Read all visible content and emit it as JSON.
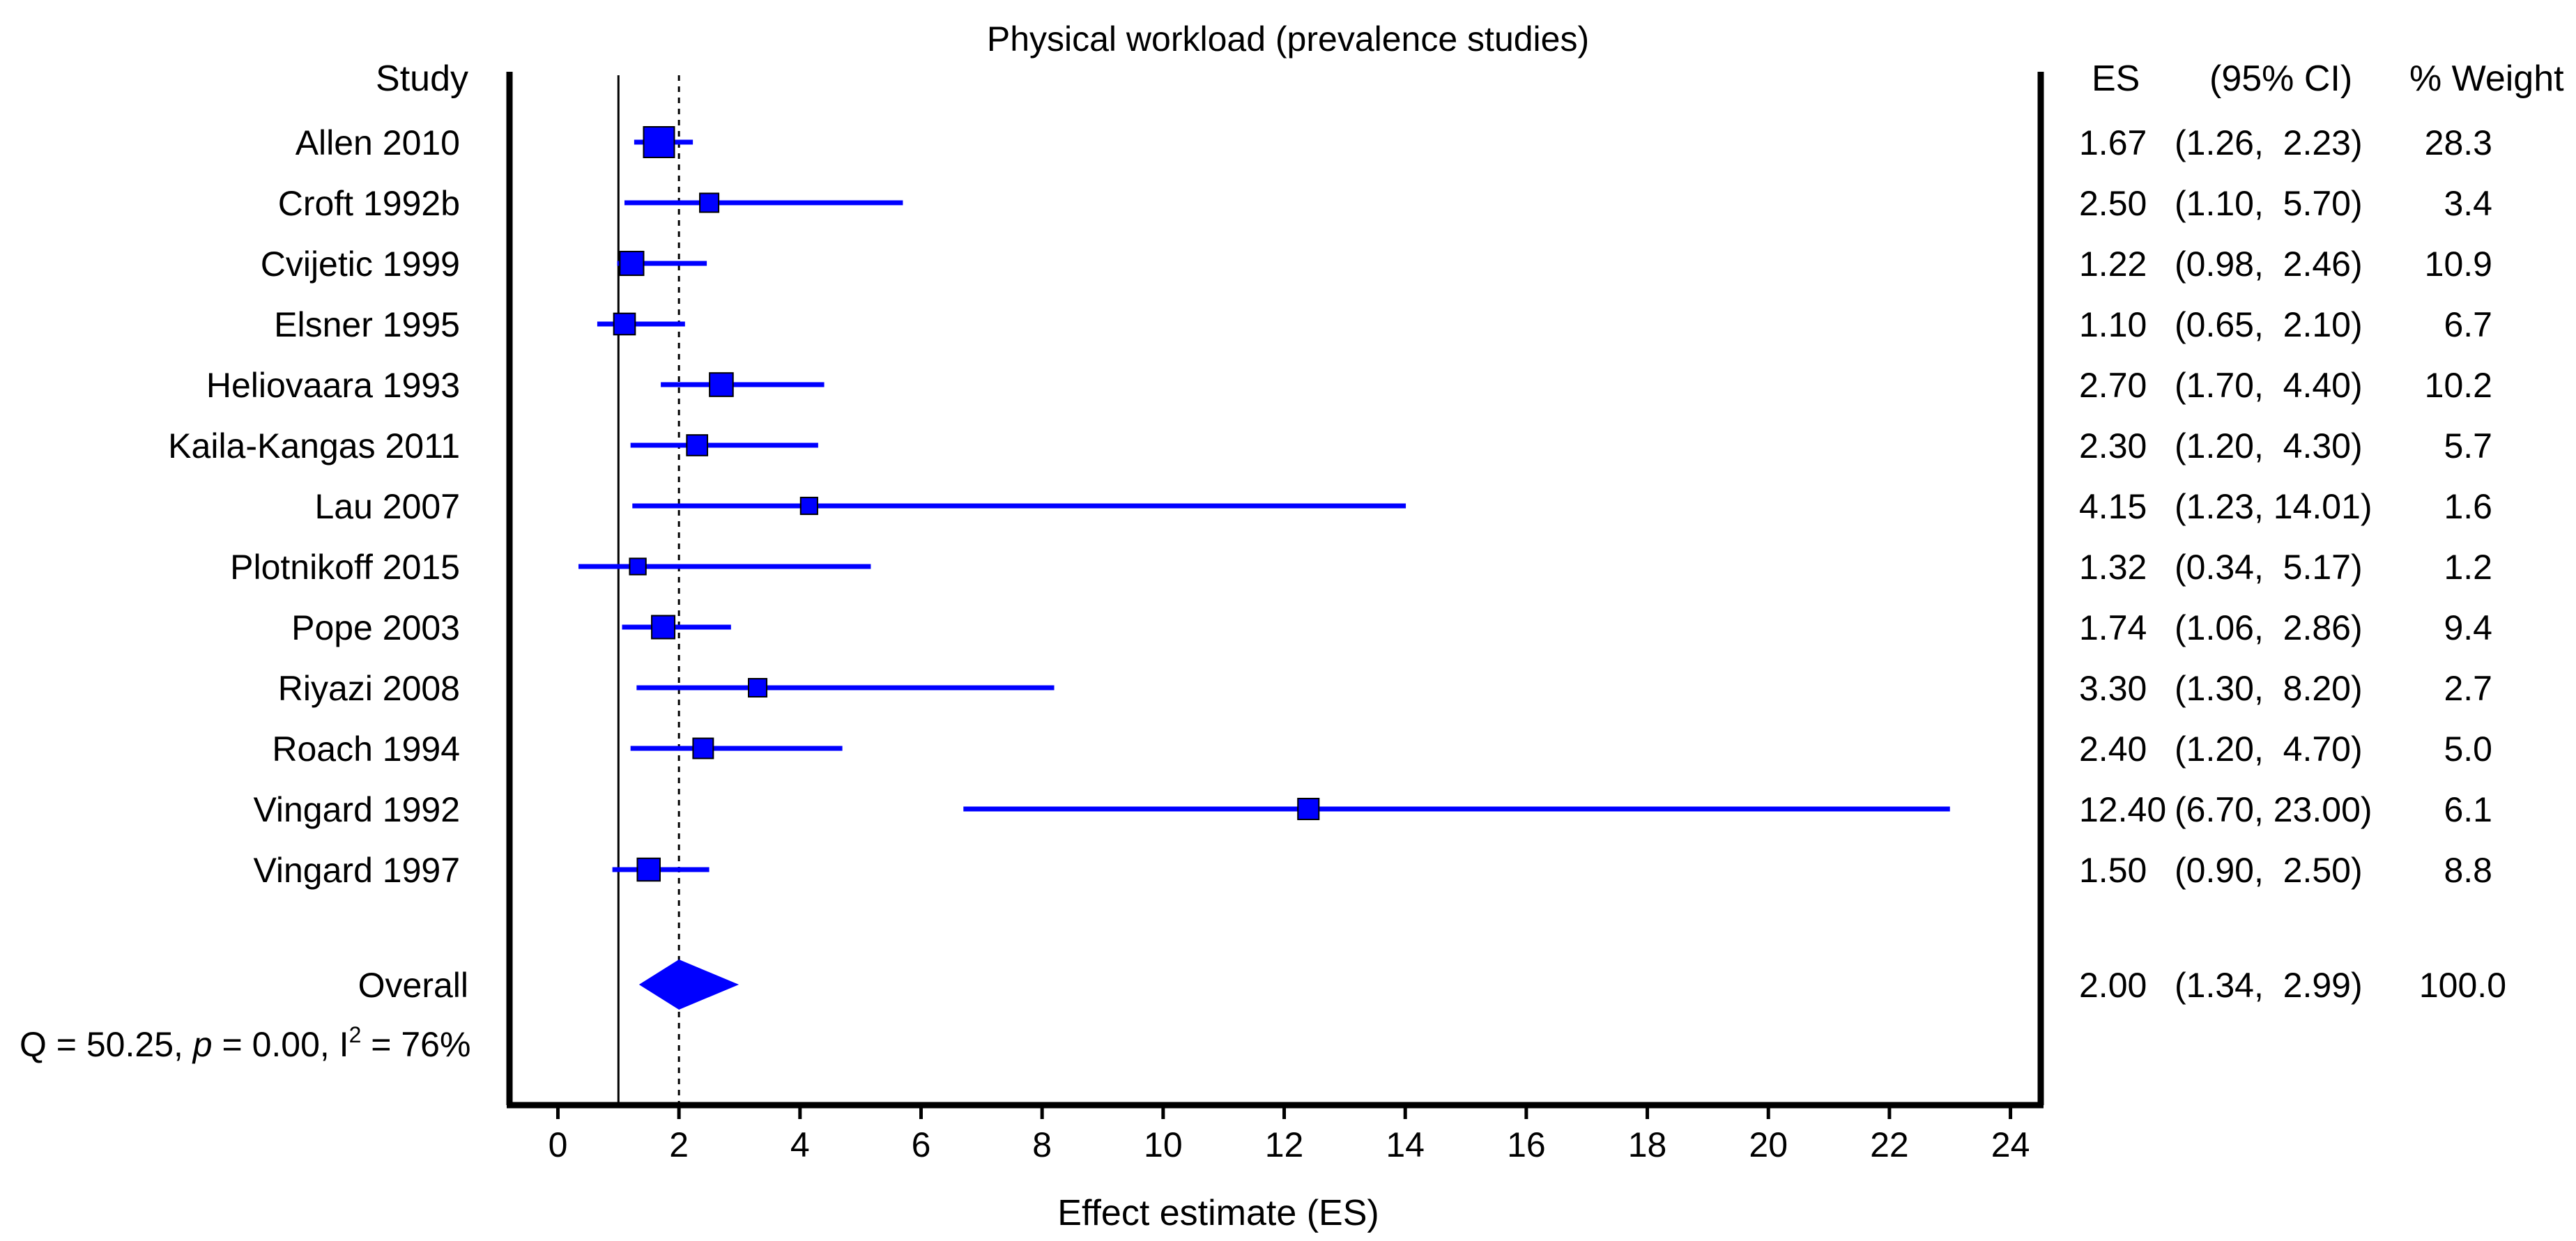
{
  "chart_data": {
    "type": "forest",
    "title": "Physical workload (prevalence studies)",
    "xlabel": "Effect estimate (ES)",
    "xlim": [
      -0.8,
      24.5
    ],
    "xticks": [
      0,
      2,
      4,
      6,
      8,
      10,
      12,
      14,
      16,
      18,
      20,
      22,
      24
    ],
    "null_line": 1,
    "pooled_line": 2.0,
    "headers": {
      "study": "Study",
      "es": "ES",
      "ci": "(95% CI)",
      "weight": "% Weight"
    },
    "studies": [
      {
        "name": "Allen 2010",
        "es": 1.67,
        "lo": 1.26,
        "hi": 2.23,
        "es_text": "1.67",
        "ci_text": "(1.26,  2.23)",
        "weight": 28.3,
        "weight_text": "28.3"
      },
      {
        "name": "Croft 1992b",
        "es": 2.5,
        "lo": 1.1,
        "hi": 5.7,
        "es_text": "2.50",
        "ci_text": "(1.10,  5.70)",
        "weight": 3.4,
        "weight_text": "3.4"
      },
      {
        "name": "Cvijetic 1999",
        "es": 1.22,
        "lo": 0.98,
        "hi": 2.46,
        "es_text": "1.22",
        "ci_text": "(0.98,  2.46)",
        "weight": 10.9,
        "weight_text": "10.9"
      },
      {
        "name": "Elsner 1995",
        "es": 1.1,
        "lo": 0.65,
        "hi": 2.1,
        "es_text": "1.10",
        "ci_text": "(0.65,  2.10)",
        "weight": 6.7,
        "weight_text": "6.7"
      },
      {
        "name": "Heliovaara 1993",
        "es": 2.7,
        "lo": 1.7,
        "hi": 4.4,
        "es_text": "2.70",
        "ci_text": "(1.70,  4.40)",
        "weight": 10.2,
        "weight_text": "10.2"
      },
      {
        "name": "Kaila-Kangas 2011",
        "es": 2.3,
        "lo": 1.2,
        "hi": 4.3,
        "es_text": "2.30",
        "ci_text": "(1.20,  4.30)",
        "weight": 5.7,
        "weight_text": "5.7"
      },
      {
        "name": "Lau 2007",
        "es": 4.15,
        "lo": 1.23,
        "hi": 14.01,
        "es_text": "4.15",
        "ci_text": "(1.23, 14.01)",
        "weight": 1.6,
        "weight_text": "1.6"
      },
      {
        "name": "Plotnikoff 2015",
        "es": 1.32,
        "lo": 0.34,
        "hi": 5.17,
        "es_text": "1.32",
        "ci_text": "(0.34,  5.17)",
        "weight": 1.2,
        "weight_text": "1.2"
      },
      {
        "name": "Pope 2003",
        "es": 1.74,
        "lo": 1.06,
        "hi": 2.86,
        "es_text": "1.74",
        "ci_text": "(1.06,  2.86)",
        "weight": 9.4,
        "weight_text": "9.4"
      },
      {
        "name": "Riyazi 2008",
        "es": 3.3,
        "lo": 1.3,
        "hi": 8.2,
        "es_text": "3.30",
        "ci_text": "(1.30,  8.20)",
        "weight": 2.7,
        "weight_text": "2.7"
      },
      {
        "name": "Roach 1994",
        "es": 2.4,
        "lo": 1.2,
        "hi": 4.7,
        "es_text": "2.40",
        "ci_text": "(1.20,  4.70)",
        "weight": 5.0,
        "weight_text": "5.0"
      },
      {
        "name": "Vingard 1992",
        "es": 12.4,
        "lo": 6.7,
        "hi": 23.0,
        "es_text": "12.40",
        "ci_text": "(6.70, 23.00)",
        "weight": 6.1,
        "weight_text": "6.1"
      },
      {
        "name": "Vingard 1997",
        "es": 1.5,
        "lo": 0.9,
        "hi": 2.5,
        "es_text": "1.50",
        "ci_text": "(0.90,  2.50)",
        "weight": 8.8,
        "weight_text": "8.8"
      }
    ],
    "overall": {
      "name": "Overall",
      "es": 2.0,
      "lo": 1.34,
      "hi": 2.99,
      "es_text": "2.00",
      "ci_text": "(1.34,  2.99)",
      "weight": 100.0,
      "weight_text": "100.0"
    },
    "heterogeneity": {
      "q_label": "Q = 50.25, ",
      "p_symbol": "p",
      "p_value": " = 0.00, I",
      "i2_superscript": "2",
      "i2_value": " = 76%"
    },
    "colors": {
      "series": "#0000ff",
      "title": "#0000ff",
      "axis": "#000000",
      "text": "#000000"
    }
  }
}
